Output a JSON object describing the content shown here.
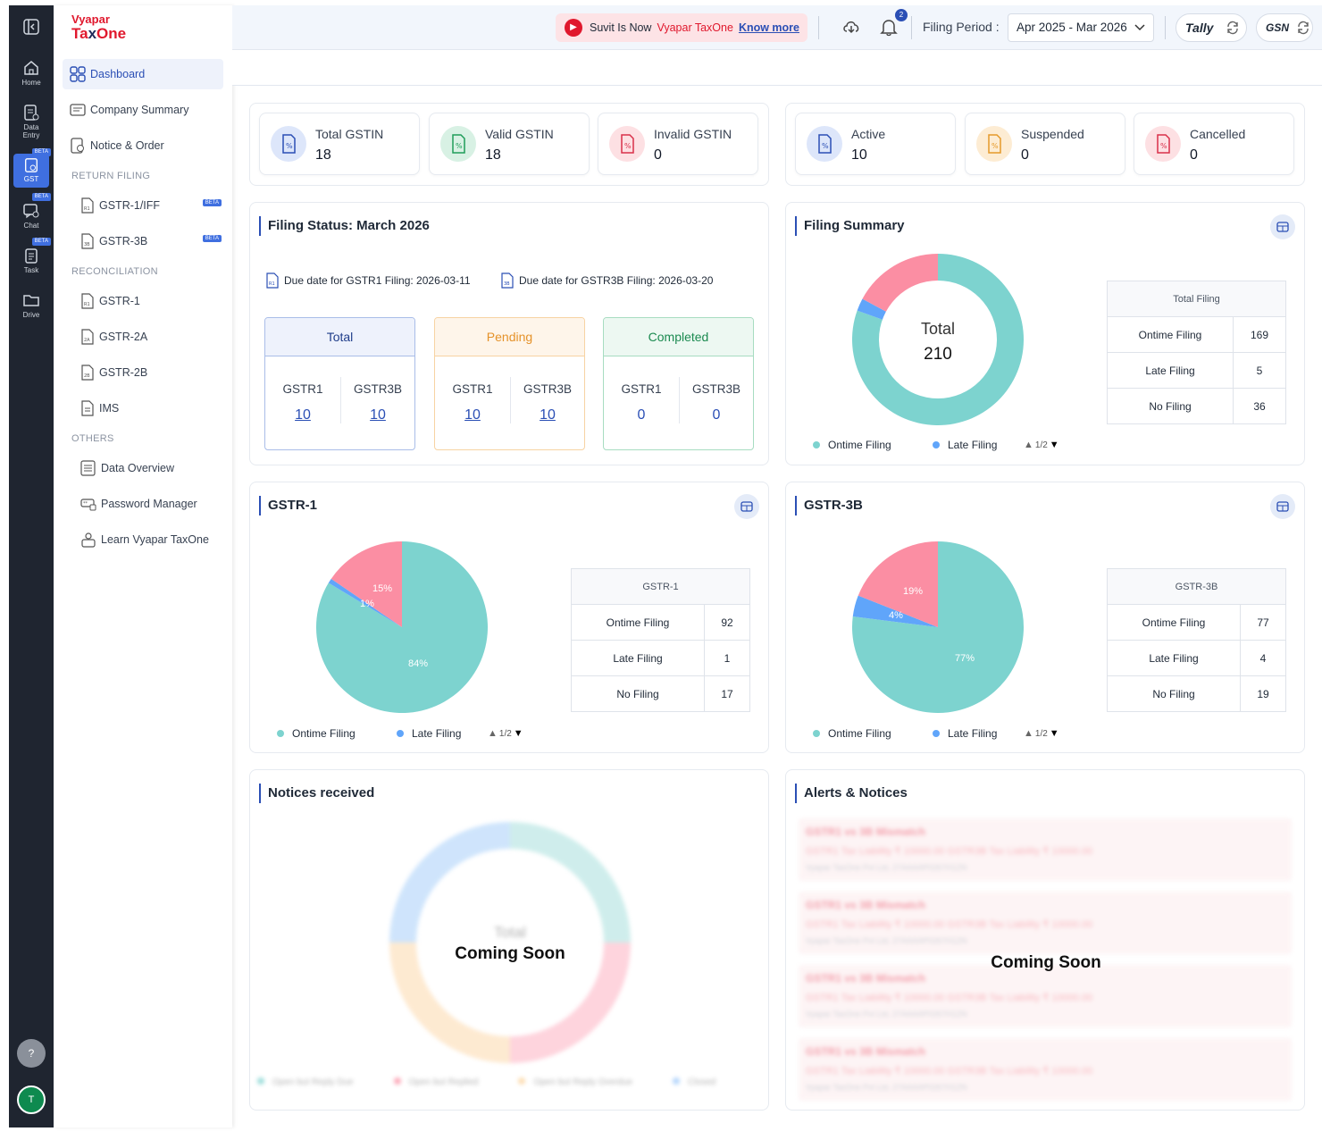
{
  "app": {
    "brand_top": "Vyapar",
    "brand_main_left": "Ta",
    "brand_main_mid": "x",
    "brand_main_right": "One"
  },
  "rail": {
    "home": "Home",
    "data_entry_1": "Data",
    "data_entry_2": "Entry",
    "gst": "GST",
    "chat": "Chat",
    "task": "Task",
    "drive": "Drive",
    "beta": "BETA",
    "help": "?",
    "avatar": "T"
  },
  "sidebar": {
    "dashboard": "Dashboard",
    "company_summary": "Company Summary",
    "notice_order": "Notice & Order",
    "section_return": "RETURN FILING",
    "gstr1_iff": "GSTR-1/IFF",
    "gstr3b": "GSTR-3B",
    "beta": "BETA",
    "section_recon": "RECONCILIATION",
    "recon_gstr1": "GSTR-1",
    "recon_gstr2a": "GSTR-2A",
    "recon_gstr2b": "GSTR-2B",
    "recon_ims": "IMS",
    "section_others": "OTHERS",
    "data_overview": "Data Overview",
    "password_manager": "Password Manager",
    "learn": "Learn Vyapar TaxOne"
  },
  "topbar": {
    "promo_text": "Suvit Is Now",
    "promo_brand": "Vyapar TaxOne",
    "promo_link": "Know more",
    "notif_count": "2",
    "period_label": "Filing Period :",
    "period_value": "Apr 2025 - Mar 2026",
    "tally": "Tally",
    "gsn": "GSN"
  },
  "stats_left": [
    {
      "label": "Total GSTIN",
      "value": "18"
    },
    {
      "label": "Valid GSTIN",
      "value": "18"
    },
    {
      "label": "Invalid GSTIN",
      "value": "0"
    }
  ],
  "stats_right": [
    {
      "label": "Active",
      "value": "10"
    },
    {
      "label": "Suspended",
      "value": "0"
    },
    {
      "label": "Cancelled",
      "value": "0"
    }
  ],
  "filing_status": {
    "title": "Filing Status: March 2026",
    "due_gstr1": "Due date for GSTR1 Filing: 2026-03-11",
    "due_gstr3b": "Due date for GSTR3B Filing: 2026-03-20",
    "boxes": [
      {
        "head": "Total",
        "c1": "GSTR1",
        "c2": "GSTR3B",
        "v1": "10",
        "v2": "10"
      },
      {
        "head": "Pending",
        "c1": "GSTR1",
        "c2": "GSTR3B",
        "v1": "10",
        "v2": "10"
      },
      {
        "head": "Completed",
        "c1": "GSTR1",
        "c2": "GSTR3B",
        "v1": "0",
        "v2": "0"
      }
    ]
  },
  "filing_summary": {
    "title": "Filing Summary",
    "center_label": "Total",
    "center_value": "210",
    "table_head": "Total Filing",
    "rows": [
      {
        "label": "Ontime Filing",
        "value": "169"
      },
      {
        "label": "Late Filing",
        "value": "5"
      },
      {
        "label": "No Filing",
        "value": "36"
      }
    ],
    "legend_ontime": "Ontime Filing",
    "legend_late": "Late Filing",
    "pager": "1/2"
  },
  "gstr1_card": {
    "title": "GSTR-1",
    "table_head": "GSTR-1",
    "rows": [
      {
        "label": "Ontime Filing",
        "value": "92"
      },
      {
        "label": "Late Filing",
        "value": "1"
      },
      {
        "label": "No Filing",
        "value": "17"
      }
    ],
    "pct_ontime": "84%",
    "pct_late": "1%",
    "pct_none": "15%",
    "legend_ontime": "Ontime Filing",
    "legend_late": "Late Filing",
    "pager": "1/2"
  },
  "gstr3b_card": {
    "title": "GSTR-3B",
    "table_head": "GSTR-3B",
    "rows": [
      {
        "label": "Ontime Filing",
        "value": "77"
      },
      {
        "label": "Late Filing",
        "value": "4"
      },
      {
        "label": "No Filing",
        "value": "19"
      }
    ],
    "pct_ontime": "77%",
    "pct_late": "4%",
    "pct_none": "19%",
    "legend_ontime": "Ontime Filing",
    "legend_late": "Late Filing",
    "pager": "1/2"
  },
  "notices": {
    "title": "Notices received",
    "coming_soon": "Coming Soon",
    "blur_center": "Total",
    "legend": [
      "Open but Reply Due",
      "Open but Replied",
      "Open but Reply Overdue",
      "Closed"
    ]
  },
  "alerts": {
    "title": "Alerts & Notices",
    "coming_soon": "Coming Soon",
    "item_title": "GSTR1 vs 3B Mismatch",
    "item_line": "GSTR1 Tax Liability ₹ 10000.00   GSTR3B Tax Liability ₹ 10000.00",
    "item_meta": "Vyapar TaxOne Pvt Ltd, 27AAAAP0267H1ZN"
  },
  "colors": {
    "ontime": "#7dd3cf",
    "late": "#60a5fa",
    "none": "#fb8ea3",
    "accent": "#2b4fb5",
    "brand": "#e0182d"
  },
  "chart_data": [
    {
      "type": "pie",
      "title": "Filing Summary",
      "categories": [
        "Ontime Filing",
        "Late Filing",
        "No Filing"
      ],
      "values": [
        169,
        5,
        36
      ]
    },
    {
      "type": "pie",
      "title": "GSTR-1",
      "categories": [
        "Ontime Filing",
        "Late Filing",
        "No Filing"
      ],
      "values": [
        92,
        1,
        17
      ]
    },
    {
      "type": "pie",
      "title": "GSTR-3B",
      "categories": [
        "Ontime Filing",
        "Late Filing",
        "No Filing"
      ],
      "values": [
        77,
        4,
        19
      ]
    }
  ]
}
